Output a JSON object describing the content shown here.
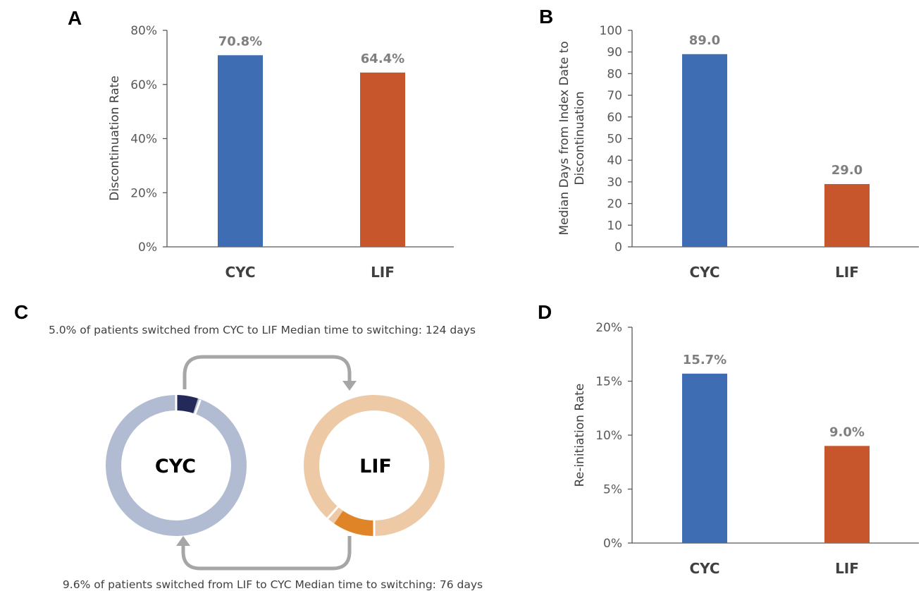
{
  "panels": {
    "a": "A",
    "b": "B",
    "c": "C",
    "d": "D"
  },
  "colors": {
    "cyc_bar": "#3e6db3",
    "lif_bar": "#c8562c",
    "cyc_ring": "#b1bbd2",
    "cyc_segment": "#232a5a",
    "lif_ring": "#edcaa5",
    "lif_segment": "#e08428",
    "arrow": "#a6a6a6"
  },
  "chart_data": [
    {
      "id": "A",
      "type": "bar",
      "categories": [
        "CYC",
        "LIF"
      ],
      "values": [
        70.8,
        64.4
      ],
      "data_labels": [
        "70.8%",
        "64.4%"
      ],
      "ylabel": "Discontinuation Rate",
      "ylim": [
        0,
        80
      ],
      "yticks": [
        0,
        20,
        40,
        60,
        80
      ],
      "ytick_labels": [
        "0%",
        "20%",
        "40%",
        "60%",
        "80%"
      ],
      "grid": false
    },
    {
      "id": "B",
      "type": "bar",
      "categories": [
        "CYC",
        "LIF"
      ],
      "values": [
        89.0,
        29.0
      ],
      "data_labels": [
        "89.0",
        "29.0"
      ],
      "ylabel_lines": [
        "Median Days from Index Date to",
        "Discontinuation"
      ],
      "ylim": [
        0,
        100
      ],
      "yticks": [
        0,
        10,
        20,
        30,
        40,
        50,
        60,
        70,
        80,
        90,
        100
      ],
      "ytick_labels": [
        "0",
        "10",
        "20",
        "30",
        "40",
        "50",
        "60",
        "70",
        "80",
        "90",
        "100"
      ],
      "grid": false
    },
    {
      "id": "D",
      "type": "bar",
      "categories": [
        "CYC",
        "LIF"
      ],
      "values": [
        15.7,
        9.0
      ],
      "data_labels": [
        "15.7%",
        "9.0%"
      ],
      "ylabel": "Re-initiation Rate",
      "ylim": [
        0,
        20
      ],
      "yticks": [
        0,
        5,
        10,
        15,
        20
      ],
      "ytick_labels": [
        "0%",
        "5%",
        "10%",
        "15%",
        "20%"
      ],
      "grid": false
    }
  ],
  "switching": {
    "cyc_label": "CYC",
    "lif_label": "LIF",
    "cyc_to_lif_text": "5.0% of patients switched from CYC to LIF Median time to switching: 124 days",
    "lif_to_cyc_text": "9.6% of patients switched from LIF to CYC Median time to switching: 76 days",
    "cyc_to_lif_pct": 5.0,
    "lif_to_cyc_pct": 9.6
  }
}
